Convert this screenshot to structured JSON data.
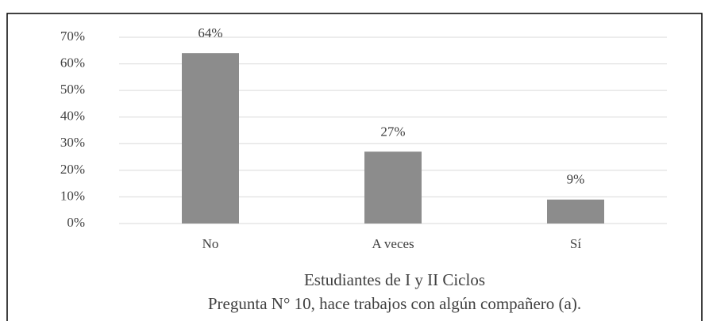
{
  "chart_data": {
    "type": "bar",
    "categories": [
      "No",
      "A veces",
      "Sí"
    ],
    "values": [
      64,
      27,
      9
    ],
    "value_labels": [
      "64%",
      "27%",
      "9%"
    ],
    "color": "#8c8c8c",
    "ylim": [
      0,
      70
    ],
    "yticks": [
      {
        "value": 0,
        "label": "0%"
      },
      {
        "value": 10,
        "label": "10%"
      },
      {
        "value": 20,
        "label": "20%"
      },
      {
        "value": 30,
        "label": "30%"
      },
      {
        "value": 40,
        "label": "40%"
      },
      {
        "value": 50,
        "label": "50%"
      },
      {
        "value": 60,
        "label": "60%"
      },
      {
        "value": 70,
        "label": "70%"
      }
    ],
    "grid": true,
    "xlabel": "Estudiantes de I y II Ciclos",
    "caption": "Pregunta N° 10, hace trabajos con algún compañero (a)."
  }
}
